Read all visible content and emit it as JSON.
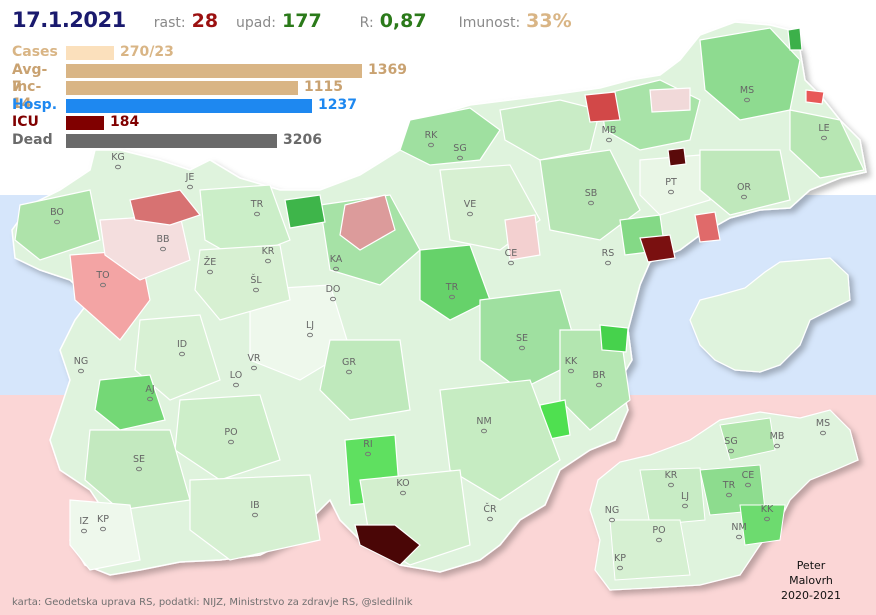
{
  "header": {
    "date": "17.1.2021",
    "rast_label": "rast:",
    "rast_value": "28",
    "upad_label": "upad:",
    "upad_value": "177",
    "r_label": "R:",
    "r_value": "0,87",
    "imunost_label": "Imunost:",
    "imunost_value": "33%"
  },
  "bars": [
    {
      "label": "Cases",
      "value": "270/23",
      "number": 270,
      "color": "#fbe0bc",
      "label_color": "#d9b585",
      "value_color": "#d9b585"
    },
    {
      "label": "Avg-7",
      "value": "1369",
      "number": 1369,
      "color": "#d9b585",
      "label_color": "#c9a271",
      "value_color": "#c9a271"
    },
    {
      "label": "Inc-14",
      "value": "1115",
      "number": 1115,
      "color": "#d9b585",
      "label_color": "#c9a271",
      "value_color": "#c9a271"
    },
    {
      "label": "Hosp.",
      "value": "1237",
      "number": 1237,
      "color": "#1e88f0",
      "label_color": "#1e88f0",
      "value_color": "#1e88f0"
    },
    {
      "label": "ICU",
      "value": "184",
      "number": 184,
      "color": "#800000",
      "label_color": "#800000",
      "value_color": "#800000"
    },
    {
      "label": "Dead",
      "value": "3206",
      "number": 3206,
      "color": "#6a6a6a",
      "label_color": "#6a6a6a",
      "value_color": "#6a6a6a"
    }
  ],
  "colors": {
    "rast": "#9b1010",
    "upad": "#2b7a1a",
    "r": "#2b7a1a",
    "imunost": "#d9b585"
  },
  "map_labels": {
    "main": [
      "KG",
      "JE",
      "BO",
      "TO",
      "BB",
      "TR",
      "KR",
      "ŽE",
      "ŠL",
      "KA",
      "DO",
      "VE",
      "LJ",
      "ID",
      "NG",
      "AJ",
      "VR",
      "LO",
      "GR",
      "PO",
      "SE",
      "IB",
      "KO",
      "RI",
      "NM",
      "ČR",
      "IZ",
      "KP",
      "SG",
      "RK",
      "MB",
      "SB",
      "CE",
      "RS",
      "TR",
      "SE",
      "KK",
      "BR",
      "PT",
      "OR",
      "MS",
      "LE"
    ],
    "inset": [
      "SG",
      "MB",
      "MS",
      "KR",
      "CE",
      "TR",
      "LJ",
      "NG",
      "PO",
      "NM",
      "KK",
      "KP"
    ]
  },
  "footer": {
    "credit": "karta: Geodetska uprava RS,  podatki: NIJZ, Ministrstvo za zdravje RS, @sledilnik",
    "author_line1": "Peter",
    "author_line2": "Malovrh",
    "author_line3": "2020-2021"
  }
}
